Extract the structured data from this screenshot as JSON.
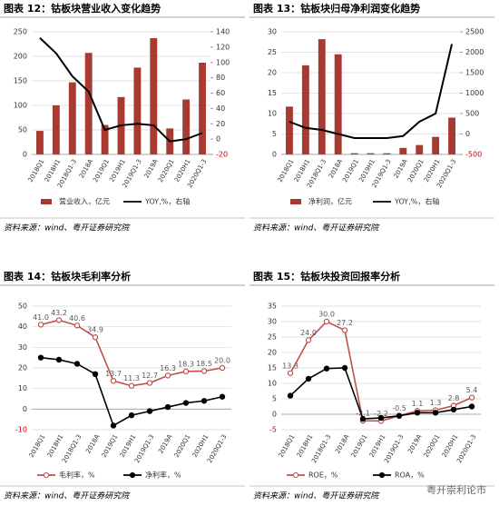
{
  "chart_data": [
    {
      "type": "combo",
      "title": "图表 12：钴板块营业收入变化趋势",
      "source": "资料来源：wind、粤开证券研究院",
      "categories": [
        "2018Q1",
        "2018H1",
        "2018Q1-3",
        "2018A",
        "2019Q1",
        "2019H1",
        "2019Q1-3",
        "2019A",
        "2020Q1",
        "2020H1",
        "2020Q1-3"
      ],
      "ylim": [
        0,
        250
      ],
      "yticks": [
        0,
        50,
        100,
        150,
        200,
        250
      ],
      "y2lim": [
        -20,
        140
      ],
      "y2ticks": [
        -20,
        0,
        20,
        40,
        60,
        80,
        100,
        120,
        140
      ],
      "series": [
        {
          "name": "营业收入，亿元",
          "type": "bar",
          "color": "#a93a32",
          "values": [
            48,
            100,
            147,
            207,
            60,
            117,
            177,
            237,
            53,
            112,
            187
          ]
        },
        {
          "name": "YOY,%，右轴",
          "type": "line",
          "axis": "y2",
          "color": "#000000",
          "values": [
            132,
            112,
            82,
            62,
            12,
            18,
            20,
            18,
            -3,
            0,
            8
          ]
        }
      ]
    },
    {
      "type": "combo",
      "title": "图表 13：钴板块归母净利润变化趋势",
      "source": "资料来源：wind、粤开证券研究院",
      "categories": [
        "2018Q1",
        "2018H1",
        "2018Q1-3",
        "2018A",
        "2019Q1",
        "2019H1",
        "2019Q1-3",
        "2019A",
        "2020Q1",
        "2020H1",
        "2020Q1-3"
      ],
      "ylim": [
        0,
        30
      ],
      "yticks": [
        0,
        5,
        10,
        15,
        20,
        25,
        30
      ],
      "y2lim": [
        -500,
        2500
      ],
      "y2ticks": [
        -500,
        0,
        500,
        1000,
        1500,
        2000,
        2500
      ],
      "series": [
        {
          "name": "净利润，亿元",
          "type": "bar",
          "color": "#a93a32",
          "values": [
            11.7,
            21.8,
            28.2,
            24.5,
            0.3,
            0.3,
            0.3,
            1.6,
            2.3,
            4.3,
            9.0
          ]
        },
        {
          "name": "YOY,%，右轴",
          "type": "line",
          "axis": "y2",
          "color": "#000000",
          "values": [
            300,
            150,
            100,
            0,
            -100,
            -100,
            -100,
            -50,
            300,
            500,
            2200
          ]
        }
      ]
    },
    {
      "type": "line",
      "title": "图表 14：钴板块毛利率分析",
      "source": "资料来源：wind、粤开证券研究院",
      "categories": [
        "2018Q1",
        "2018H1",
        "2018Q1-3",
        "2018A",
        "2019Q1",
        "2019H1",
        "2019Q1-3",
        "2019A",
        "2020Q1",
        "2020H1",
        "2020Q1-3"
      ],
      "ylim": [
        -10,
        50
      ],
      "yticks": [
        -10,
        0,
        10,
        20,
        30,
        40,
        50
      ],
      "series": [
        {
          "name": "毛利率，%",
          "color": "#c0504d",
          "marker": "hollow",
          "values": [
            41,
            43.2,
            40.6,
            34.9,
            13.7,
            11.3,
            12.7,
            16.3,
            18.3,
            18.5,
            20
          ],
          "value_labels": [
            "41.0",
            "43.2",
            "40.6",
            "34.9",
            "13.7",
            "11.3",
            "12.7",
            "16.3",
            "18.3",
            "18.5",
            "20.0"
          ]
        },
        {
          "name": "净利率，%",
          "color": "#000000",
          "marker": "filled",
          "values": [
            25,
            24,
            22,
            17,
            -8,
            -3,
            -1,
            1,
            3,
            4,
            6
          ]
        }
      ]
    },
    {
      "type": "line",
      "title": "图表 15：钴板块投资回报率分析",
      "source": "资料来源：wind、粤开证券研究院",
      "categories": [
        "2018Q1",
        "2018H1",
        "2018Q1-3",
        "2018A",
        "2019Q1",
        "2019H1",
        "2019Q1-3",
        "2019A",
        "2020Q1",
        "2020H1",
        "2020Q1-3"
      ],
      "ylim": [
        -5,
        35
      ],
      "yticks": [
        -5,
        0,
        5,
        10,
        15,
        20,
        25,
        30,
        35
      ],
      "series": [
        {
          "name": "ROE，%",
          "color": "#c0504d",
          "marker": "hollow",
          "values": [
            13.3,
            24,
            30,
            27.2,
            -2.1,
            -2.2,
            -0.5,
            1.1,
            1.3,
            2.8,
            5.4
          ],
          "value_labels": [
            "13.3",
            "24.0",
            "30.0",
            "27.2",
            "-2.1",
            "-2.2",
            "-0.5",
            "1.1",
            "1.3",
            "2.8",
            "5.4"
          ]
        },
        {
          "name": "ROA，%",
          "color": "#000000",
          "marker": "filled",
          "values": [
            6,
            11.5,
            14.8,
            15,
            -1.5,
            -1.2,
            -0.5,
            0.5,
            0.5,
            1.5,
            2.5
          ]
        }
      ]
    }
  ],
  "watermark": "粤开崇利论市"
}
